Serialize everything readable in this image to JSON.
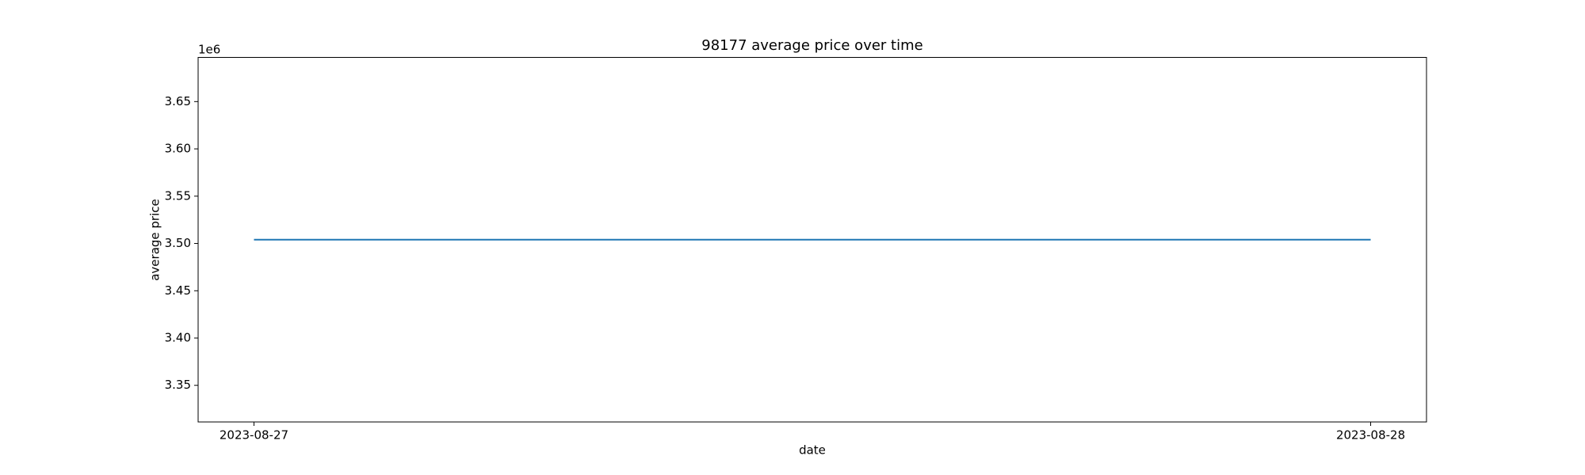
{
  "chart_data": {
    "type": "line",
    "title": "98177 average price over time",
    "x_label": "date",
    "y_label": "average price",
    "y_offset_label": "1e6",
    "x": [
      "2023-08-27",
      "2023-08-28"
    ],
    "series": [
      {
        "color": "#1f77b4",
        "values": [
          3504000,
          3504000
        ]
      }
    ],
    "xlim": [
      "2023-08-26T22:48",
      "2023-08-28T01:12"
    ],
    "xticks": [
      "2023-08-27",
      "2023-08-28"
    ],
    "ylim": [
      3311280,
      3696720
    ],
    "yticks": [
      {
        "value": 3350000,
        "label": "3.35"
      },
      {
        "value": 3400000,
        "label": "3.40"
      },
      {
        "value": 3450000,
        "label": "3.45"
      },
      {
        "value": 3500000,
        "label": "3.50"
      },
      {
        "value": 3550000,
        "label": "3.55"
      },
      {
        "value": 3600000,
        "label": "3.60"
      },
      {
        "value": 3650000,
        "label": "3.65"
      }
    ],
    "grid": false
  }
}
